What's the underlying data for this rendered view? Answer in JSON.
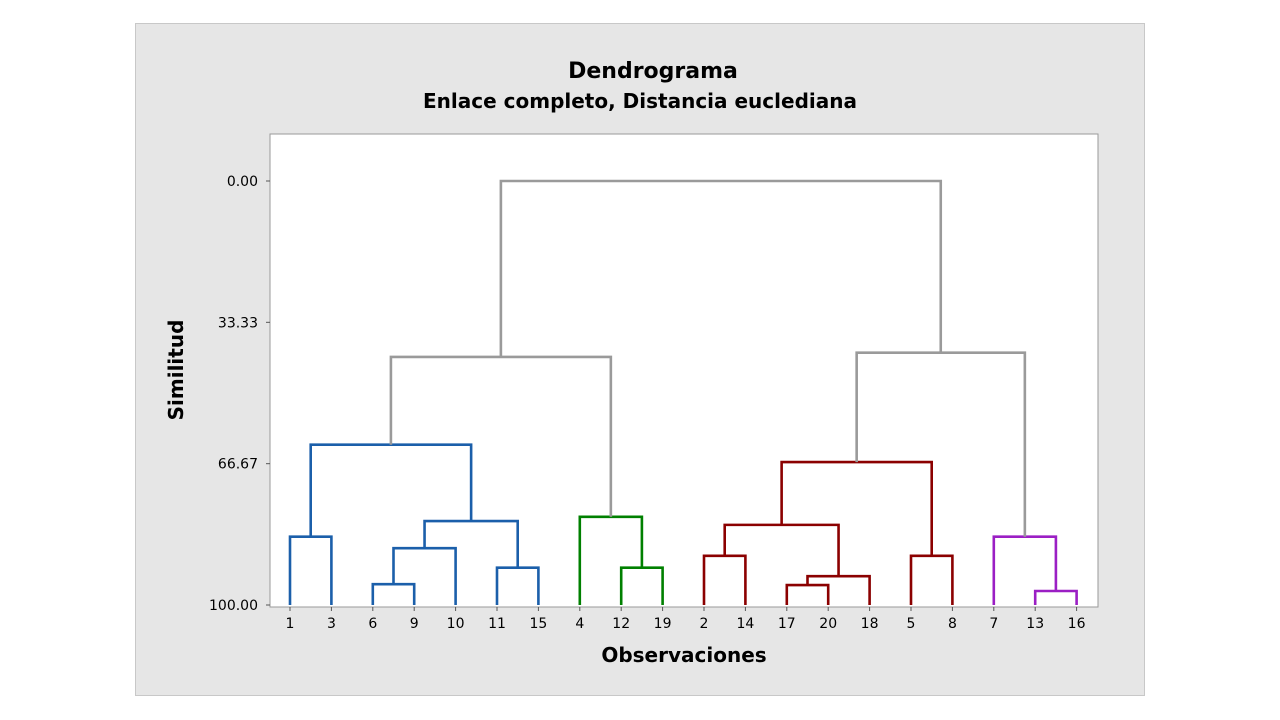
{
  "chart_data": {
    "type": "dendrogram",
    "title": "Dendrograma",
    "subtitle": "Enlace completo, Distancia euclediana",
    "xlabel": "Observaciones",
    "ylabel": "Similitud",
    "ylim": [
      0,
      100
    ],
    "y_axis_reversed": true,
    "y_ticks": [
      "0.00",
      "33.33",
      "66.67",
      "100.00"
    ],
    "leaves": [
      "1",
      "3",
      "6",
      "9",
      "10",
      "11",
      "15",
      "4",
      "12",
      "19",
      "2",
      "14",
      "17",
      "20",
      "18",
      "5",
      "8",
      "7",
      "13",
      "16"
    ],
    "merges": [
      {
        "left": "6",
        "right": "9",
        "similarity": 95.1,
        "color": "#1b5faa"
      },
      {
        "left": "6,9",
        "right": "10",
        "similarity": 86.6,
        "color": "#1b5faa"
      },
      {
        "left": "11",
        "right": "15",
        "similarity": 91.2,
        "color": "#1b5faa"
      },
      {
        "left": "6,9,10",
        "right": "11,15",
        "similarity": 80.2,
        "color": "#1b5faa"
      },
      {
        "left": "1",
        "right": "3",
        "similarity": 83.9,
        "color": "#1b5faa"
      },
      {
        "left": "1,3",
        "right": "6,9,10,11,15",
        "similarity": 62.2,
        "color": "#1b5faa"
      },
      {
        "left": "12",
        "right": "19",
        "similarity": 91.2,
        "color": "#008000"
      },
      {
        "left": "4",
        "right": "12,19",
        "similarity": 79.2,
        "color": "#008000"
      },
      {
        "left": "2",
        "right": "14",
        "similarity": 88.4,
        "color": "#8b0000"
      },
      {
        "left": "17",
        "right": "20",
        "similarity": 95.3,
        "color": "#8b0000"
      },
      {
        "left": "17,20",
        "right": "18",
        "similarity": 93.2,
        "color": "#8b0000"
      },
      {
        "left": "2,14",
        "right": "17,20,18",
        "similarity": 81.1,
        "color": "#8b0000"
      },
      {
        "left": "5",
        "right": "8",
        "similarity": 88.4,
        "color": "#8b0000"
      },
      {
        "left": "2,14,17,20,18",
        "right": "5,8",
        "similarity": 66.3,
        "color": "#8b0000"
      },
      {
        "left": "13",
        "right": "16",
        "similarity": 96.7,
        "color": "#9b1fc4"
      },
      {
        "left": "7",
        "right": "13,16",
        "similarity": 83.9,
        "color": "#9b1fc4"
      },
      {
        "left": "A",
        "right": "B",
        "similarity": 41.5,
        "color": "#9a9a9a"
      },
      {
        "left": "C",
        "right": "D",
        "similarity": 40.5,
        "color": "#9a9a9a"
      },
      {
        "left": "E",
        "right": "F",
        "similarity": 0.0,
        "color": "#9a9a9a"
      }
    ]
  }
}
